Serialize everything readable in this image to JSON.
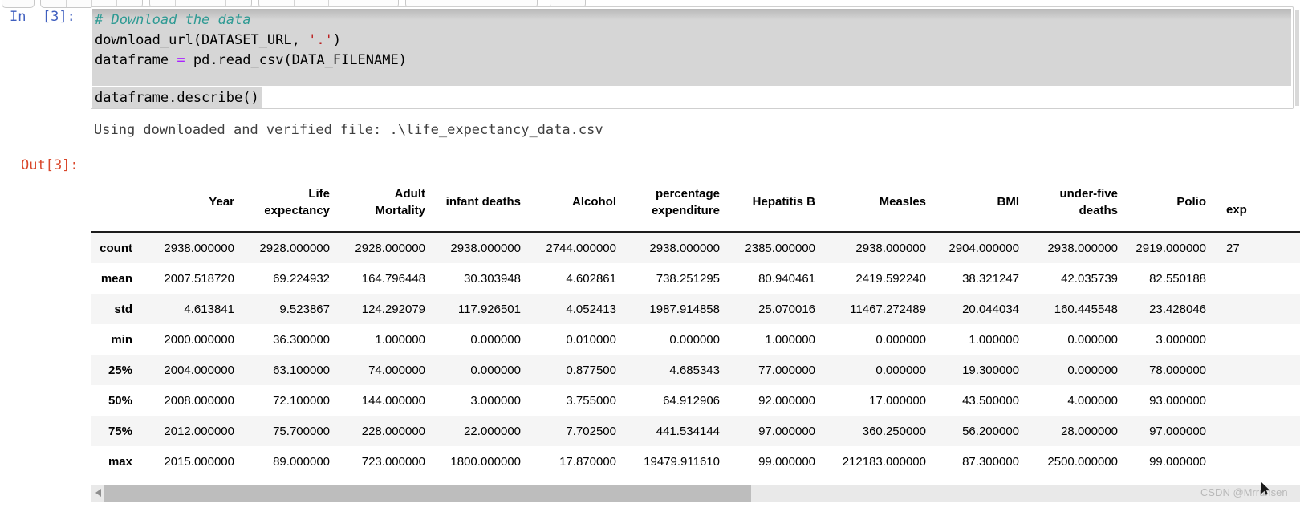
{
  "page": {
    "watermark": "CSDN @Mrrunsen"
  },
  "cell": {
    "input_prompt": "In  [3]:",
    "output_prompt": "Out[3]:",
    "code": {
      "comment": "# Download the data",
      "call_pre": "download_url(DATASET_URL, ",
      "call_str": "'.'",
      "call_post": ")",
      "assign_lhs": "dataframe ",
      "assign_op": "=",
      "assign_rhs": " pd.read_csv(DATA_FILENAME)",
      "describe": "dataframe.describe()"
    },
    "stdout": "Using downloaded and verified file: .\\life_expectancy_data.csv"
  },
  "colors": {
    "prompt_in": "#3f5fbf",
    "prompt_out": "#d9472b",
    "comment": "#2e9a93",
    "string": "#ba2121",
    "operator": "#aa22ff",
    "selection": "#d6d6d6"
  },
  "table": {
    "columns": [
      "Year",
      "Life expectancy",
      "Adult Mortality",
      "infant deaths",
      "Alcohol",
      "percentage expenditure",
      "Hepatitis B",
      "Measles",
      "BMI",
      "under-five deaths",
      "Polio",
      "exp"
    ],
    "rows": [
      {
        "label": "count",
        "values": [
          "2938.000000",
          "2928.000000",
          "2928.000000",
          "2938.000000",
          "2744.000000",
          "2938.000000",
          "2385.000000",
          "2938.000000",
          "2904.000000",
          "2938.000000",
          "2919.000000",
          "27"
        ]
      },
      {
        "label": "mean",
        "values": [
          "2007.518720",
          "69.224932",
          "164.796448",
          "30.303948",
          "4.602861",
          "738.251295",
          "80.940461",
          "2419.592240",
          "38.321247",
          "42.035739",
          "82.550188",
          ""
        ]
      },
      {
        "label": "std",
        "values": [
          "4.613841",
          "9.523867",
          "124.292079",
          "117.926501",
          "4.052413",
          "1987.914858",
          "25.070016",
          "11467.272489",
          "20.044034",
          "160.445548",
          "23.428046",
          ""
        ]
      },
      {
        "label": "min",
        "values": [
          "2000.000000",
          "36.300000",
          "1.000000",
          "0.000000",
          "0.010000",
          "0.000000",
          "1.000000",
          "0.000000",
          "1.000000",
          "0.000000",
          "3.000000",
          ""
        ]
      },
      {
        "label": "25%",
        "values": [
          "2004.000000",
          "63.100000",
          "74.000000",
          "0.000000",
          "0.877500",
          "4.685343",
          "77.000000",
          "0.000000",
          "19.300000",
          "0.000000",
          "78.000000",
          ""
        ]
      },
      {
        "label": "50%",
        "values": [
          "2008.000000",
          "72.100000",
          "144.000000",
          "3.000000",
          "3.755000",
          "64.912906",
          "92.000000",
          "17.000000",
          "43.500000",
          "4.000000",
          "93.000000",
          ""
        ]
      },
      {
        "label": "75%",
        "values": [
          "2012.000000",
          "75.700000",
          "228.000000",
          "22.000000",
          "7.702500",
          "441.534144",
          "97.000000",
          "360.250000",
          "56.200000",
          "28.000000",
          "97.000000",
          ""
        ]
      },
      {
        "label": "max",
        "values": [
          "2015.000000",
          "89.000000",
          "723.000000",
          "1800.000000",
          "17.870000",
          "19479.911610",
          "99.000000",
          "212183.000000",
          "87.300000",
          "2500.000000",
          "99.000000",
          ""
        ]
      }
    ]
  }
}
